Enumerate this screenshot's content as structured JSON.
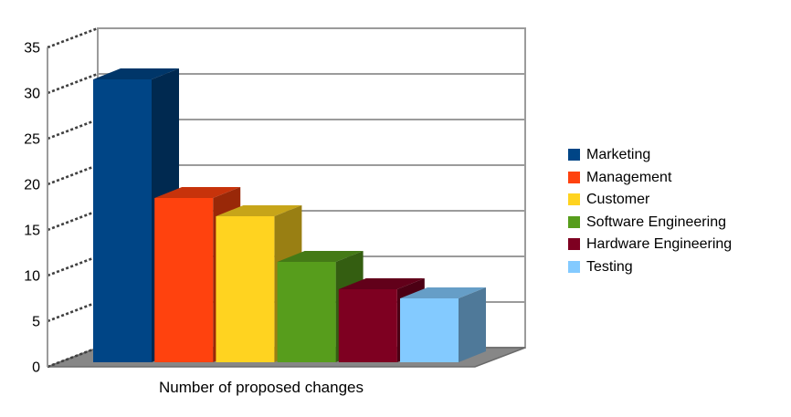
{
  "chart_data": {
    "type": "bar",
    "projection": "3d",
    "title": "",
    "xlabel": "Number of proposed changes",
    "ylabel": "",
    "ylim": [
      0,
      35
    ],
    "yticks": [
      0,
      5,
      10,
      15,
      20,
      25,
      30,
      35
    ],
    "grid": true,
    "legend_position": "right",
    "categories": [
      "Marketing",
      "Management",
      "Customer",
      "Software Engineering",
      "Hardware Engineering",
      "Testing"
    ],
    "values": [
      31,
      18,
      16,
      11,
      8,
      7
    ],
    "colors": [
      "#004586",
      "#FF420E",
      "#FFD320",
      "#579D1C",
      "#7E0021",
      "#83CAFF"
    ]
  },
  "styles": {
    "background": "#FFFFFF",
    "grid_line": "#9B9B9B",
    "floor": "#878787",
    "floor_edge": "#6A6A6A",
    "hatch": "#404040",
    "text": "#000000"
  }
}
